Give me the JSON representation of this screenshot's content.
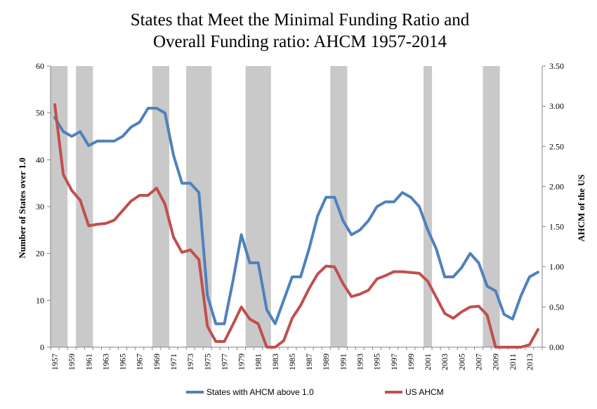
{
  "chart_data": {
    "type": "line",
    "title_lines": [
      "States that Meet the Minimal Funding Ratio and",
      "Overall Funding ratio: AHCM 1957-2014"
    ],
    "ylabel_left": "Number of States over 1.0",
    "ylabel_right": "AHCM of the US",
    "ylim_left": [
      0,
      60
    ],
    "ylim_right": [
      0,
      3.5
    ],
    "left_ticks": [
      "0",
      "10",
      "20",
      "30",
      "40",
      "50",
      "60"
    ],
    "right_ticks": [
      "0.00",
      "0.50",
      "1.00",
      "1.50",
      "2.00",
      "2.50",
      "3.00",
      "3.50"
    ],
    "x_tick_labels": [
      "1957",
      "1959",
      "1961",
      "1963",
      "1965",
      "1967",
      "1969",
      "1971",
      "1973",
      "1975",
      "1977",
      "1979",
      "1981",
      "1983",
      "1985",
      "1987",
      "1989",
      "1991",
      "1993",
      "1995",
      "1997",
      "1999",
      "2001",
      "2003",
      "2005",
      "2007",
      "2009",
      "2011",
      "2013"
    ],
    "x": [
      1957,
      1958,
      1959,
      1960,
      1961,
      1962,
      1963,
      1964,
      1965,
      1966,
      1967,
      1968,
      1969,
      1970,
      1971,
      1972,
      1973,
      1974,
      1975,
      1976,
      1977,
      1978,
      1979,
      1980,
      1981,
      1982,
      1983,
      1984,
      1985,
      1986,
      1987,
      1988,
      1989,
      1990,
      1991,
      1992,
      1993,
      1994,
      1995,
      1996,
      1997,
      1998,
      1999,
      2000,
      2001,
      2002,
      2003,
      2004,
      2005,
      2006,
      2007,
      2008,
      2009,
      2010,
      2011,
      2012,
      2013,
      2014
    ],
    "recessions": [
      [
        1957,
        1958
      ],
      [
        1960,
        1961
      ],
      [
        1969,
        1970
      ],
      [
        1973,
        1975
      ],
      [
        1980,
        1982
      ],
      [
        1990,
        1991
      ],
      [
        2001,
        2001
      ],
      [
        2008,
        2009
      ]
    ],
    "series": [
      {
        "name": "States with AHCM above 1.0",
        "axis": "left",
        "color": "#4f81bd",
        "values": [
          49,
          46,
          45,
          46,
          43,
          44,
          44,
          44,
          45,
          47,
          48,
          51,
          51,
          50,
          41,
          35,
          35,
          33,
          11,
          5,
          5,
          14,
          24,
          18,
          18,
          8,
          5,
          10,
          15,
          15,
          21,
          28,
          32,
          32,
          27,
          24,
          25,
          27,
          30,
          31,
          31,
          33,
          32,
          30,
          25,
          21,
          15,
          15,
          17,
          20,
          18,
          13,
          12,
          7,
          6,
          11,
          15,
          16
        ]
      },
      {
        "name": "US AHCM",
        "axis": "right",
        "color": "#c0504d",
        "values": [
          3.02,
          2.15,
          1.95,
          1.83,
          1.51,
          1.53,
          1.54,
          1.58,
          1.7,
          1.82,
          1.89,
          1.89,
          1.98,
          1.78,
          1.37,
          1.18,
          1.21,
          1.09,
          0.26,
          0.07,
          0.07,
          0.28,
          0.5,
          0.35,
          0.29,
          0.0,
          0.0,
          0.08,
          0.36,
          0.52,
          0.73,
          0.91,
          1.01,
          1.0,
          0.79,
          0.63,
          0.66,
          0.71,
          0.85,
          0.89,
          0.94,
          0.94,
          0.93,
          0.92,
          0.82,
          0.62,
          0.42,
          0.36,
          0.44,
          0.5,
          0.51,
          0.4,
          0.0,
          0.0,
          0.0,
          0.0,
          0.03,
          0.22
        ]
      }
    ],
    "legend_position": "bottom",
    "grid": false
  },
  "colors": {
    "recession": "#c9c9c9",
    "axis": "#868686"
  }
}
